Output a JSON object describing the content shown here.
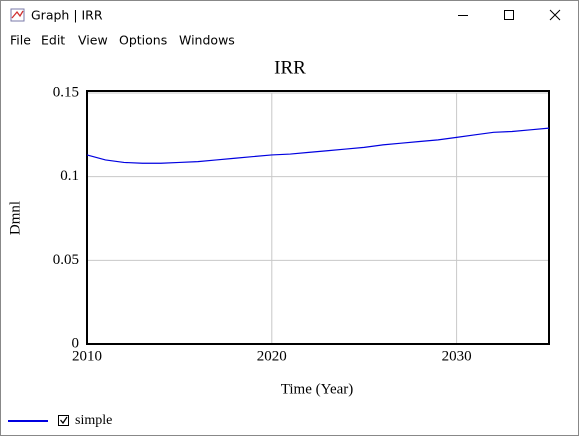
{
  "window": {
    "title": "Graph | IRR",
    "menu": [
      "File",
      "Edit",
      "View",
      "Options",
      "Windows"
    ]
  },
  "chart_data": {
    "type": "line",
    "title": "IRR",
    "x_label": "Time (Year)",
    "y_label": "Dmnl",
    "x": [
      2010,
      2011,
      2012,
      2013,
      2014,
      2015,
      2016,
      2017,
      2018,
      2019,
      2020,
      2021,
      2022,
      2023,
      2024,
      2025,
      2026,
      2027,
      2028,
      2029,
      2030,
      2031,
      2032,
      2033,
      2034,
      2035
    ],
    "series": [
      {
        "name": "simple",
        "color": "#0000e0",
        "values": [
          0.113,
          0.11,
          0.1085,
          0.108,
          0.108,
          0.1085,
          0.109,
          0.11,
          0.111,
          0.112,
          0.113,
          0.1135,
          0.1145,
          0.1155,
          0.1165,
          0.1175,
          0.119,
          0.12,
          0.121,
          0.122,
          0.1235,
          0.125,
          0.1265,
          0.127,
          0.128,
          0.129
        ]
      }
    ],
    "xlim": [
      2010,
      2035
    ],
    "xticks": [
      2010,
      2020,
      2030
    ],
    "ylim": [
      0,
      0.15
    ],
    "yticks": [
      0,
      0.05,
      0.1,
      0.15
    ],
    "grid": true
  }
}
